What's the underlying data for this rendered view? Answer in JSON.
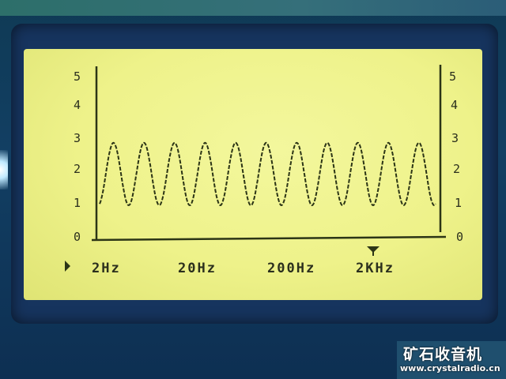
{
  "device": {
    "display": {
      "y_ticks": [
        "0",
        "1",
        "2",
        "3",
        "4",
        "5"
      ],
      "x_labels": [
        "2Hz",
        "20Hz",
        "200Hz",
        "2KHz"
      ],
      "marker_icon": "triangle-down-icon",
      "pointer_icon": "play-indicator-icon"
    }
  },
  "chart_data": {
    "type": "line",
    "ylim": [
      0,
      5
    ],
    "xscale": "log",
    "xlim": [
      2,
      5000
    ],
    "x_ticks": [
      "2Hz",
      "20Hz",
      "200Hz",
      "2KHz"
    ],
    "y_ticks": [
      0,
      1,
      2,
      3,
      4,
      5
    ],
    "series": [
      {
        "cycles": 11,
        "min": 1,
        "max": 2.8,
        "shape": "sine"
      }
    ],
    "grid": false,
    "colors": {
      "trace": "#2c3516",
      "lcd_bg": "#eef28a"
    }
  },
  "watermark": {
    "title": "矿石收音机",
    "url": "www.crystalradio.cn"
  }
}
